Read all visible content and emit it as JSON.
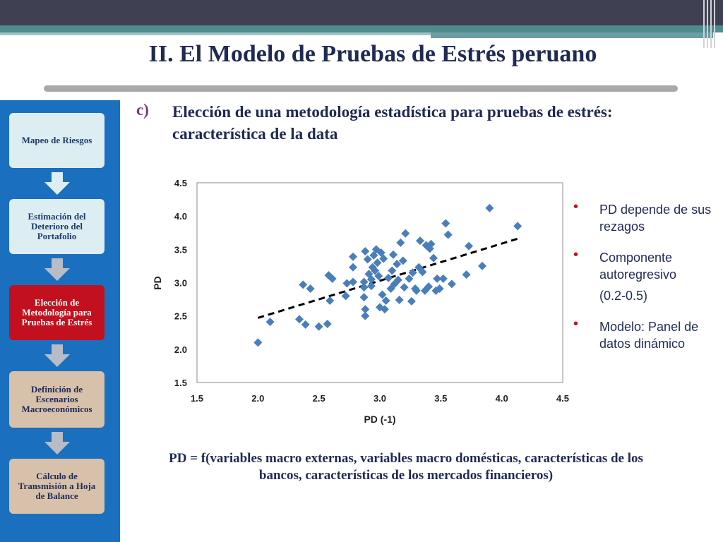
{
  "slide": {
    "title": "II. El Modelo de Pruebas de Estrés peruano",
    "subheading_letter": "c)",
    "subheading_text": "Elección de una metodología estadística para pruebas de estrés: característica de la data",
    "formula": "PD = f(variables macro externas, variables macro domésticas, características de los bancos, características de los mercados financieros)"
  },
  "sidebar": {
    "steps": [
      {
        "label": "Mapeo de Riesgos",
        "state": "normal"
      },
      {
        "label": "Estimación del Deterioro del Portafolio",
        "state": "normal"
      },
      {
        "label": "Elección de Metodología para Pruebas de Estrés",
        "state": "active"
      },
      {
        "label": "Definición de Escenarios Macroeconómicos",
        "state": "tan"
      },
      {
        "label": "Cálculo de Transmisión a Hoja de Balance",
        "state": "tan"
      }
    ]
  },
  "bullets": [
    {
      "text": "PD depende de sus rezagos",
      "extra": ""
    },
    {
      "text": "Componente autoregresivo",
      "extra": "(0.2-0.5)"
    },
    {
      "text": "Modelo: Panel de datos dinámico",
      "extra": ""
    }
  ],
  "colors": {
    "marker": "#4a7ebb",
    "active_step": "#c2101e",
    "sidebar": "#1b6fbf"
  },
  "chart_data": {
    "type": "scatter",
    "xlabel": "PD (-1)",
    "ylabel": "PD",
    "xlim": [
      1.5,
      4.5
    ],
    "ylim": [
      1.5,
      4.5
    ],
    "xticks": [
      "1.5",
      "2.0",
      "2.5",
      "3.0",
      "3.5",
      "4.0",
      "4.5"
    ],
    "yticks": [
      "1.5",
      "2.0",
      "2.5",
      "3.0",
      "3.5",
      "4.0",
      "4.5"
    ],
    "trendline": {
      "x": [
        2.0,
        4.15
      ],
      "y": [
        2.47,
        3.67
      ],
      "style": "dashed"
    },
    "points": [
      [
        2.0,
        2.1
      ],
      [
        2.1,
        2.41
      ],
      [
        2.34,
        2.45
      ],
      [
        2.37,
        2.97
      ],
      [
        2.39,
        2.37
      ],
      [
        2.43,
        2.91
      ],
      [
        2.5,
        2.34
      ],
      [
        2.57,
        2.38
      ],
      [
        2.58,
        3.11
      ],
      [
        2.59,
        2.73
      ],
      [
        2.61,
        3.06
      ],
      [
        2.72,
        2.8
      ],
      [
        2.73,
        2.99
      ],
      [
        2.78,
        3.01
      ],
      [
        2.78,
        3.23
      ],
      [
        2.78,
        3.39
      ],
      [
        2.87,
        2.78
      ],
      [
        2.87,
        2.93
      ],
      [
        2.87,
        3.01
      ],
      [
        2.88,
        3.47
      ],
      [
        2.88,
        2.6
      ],
      [
        2.88,
        2.5
      ],
      [
        2.9,
        3.35
      ],
      [
        2.91,
        3.13
      ],
      [
        2.93,
        3.05
      ],
      [
        2.93,
        2.95
      ],
      [
        2.94,
        3.23
      ],
      [
        2.95,
        3.41
      ],
      [
        2.96,
        3.18
      ],
      [
        2.97,
        3.5
      ],
      [
        2.98,
        3.3
      ],
      [
        2.99,
        3.1
      ],
      [
        3.0,
        2.63
      ],
      [
        3.01,
        3.45
      ],
      [
        3.02,
        2.82
      ],
      [
        3.03,
        3.36
      ],
      [
        3.04,
        2.6
      ],
      [
        3.05,
        2.73
      ],
      [
        3.07,
        3.07
      ],
      [
        3.09,
        2.91
      ],
      [
        3.1,
        3.18
      ],
      [
        3.11,
        3.42
      ],
      [
        3.12,
        2.98
      ],
      [
        3.14,
        3.28
      ],
      [
        3.15,
        3.04
      ],
      [
        3.16,
        2.74
      ],
      [
        3.17,
        3.6
      ],
      [
        3.19,
        3.33
      ],
      [
        3.2,
        2.93
      ],
      [
        3.21,
        3.74
      ],
      [
        3.24,
        3.06
      ],
      [
        3.26,
        2.72
      ],
      [
        3.27,
        3.15
      ],
      [
        3.29,
        2.91
      ],
      [
        3.3,
        2.88
      ],
      [
        3.32,
        3.23
      ],
      [
        3.33,
        3.63
      ],
      [
        3.35,
        3.16
      ],
      [
        3.37,
        2.88
      ],
      [
        3.38,
        3.56
      ],
      [
        3.4,
        2.94
      ],
      [
        3.41,
        3.51
      ],
      [
        3.42,
        3.58
      ],
      [
        3.44,
        3.37
      ],
      [
        3.46,
        2.88
      ],
      [
        3.47,
        3.06
      ],
      [
        3.49,
        2.91
      ],
      [
        3.52,
        3.06
      ],
      [
        3.54,
        3.89
      ],
      [
        3.56,
        3.72
      ],
      [
        3.59,
        2.98
      ],
      [
        3.71,
        3.12
      ],
      [
        3.73,
        3.55
      ],
      [
        3.84,
        3.25
      ],
      [
        3.9,
        4.12
      ],
      [
        4.13,
        3.85
      ]
    ]
  }
}
